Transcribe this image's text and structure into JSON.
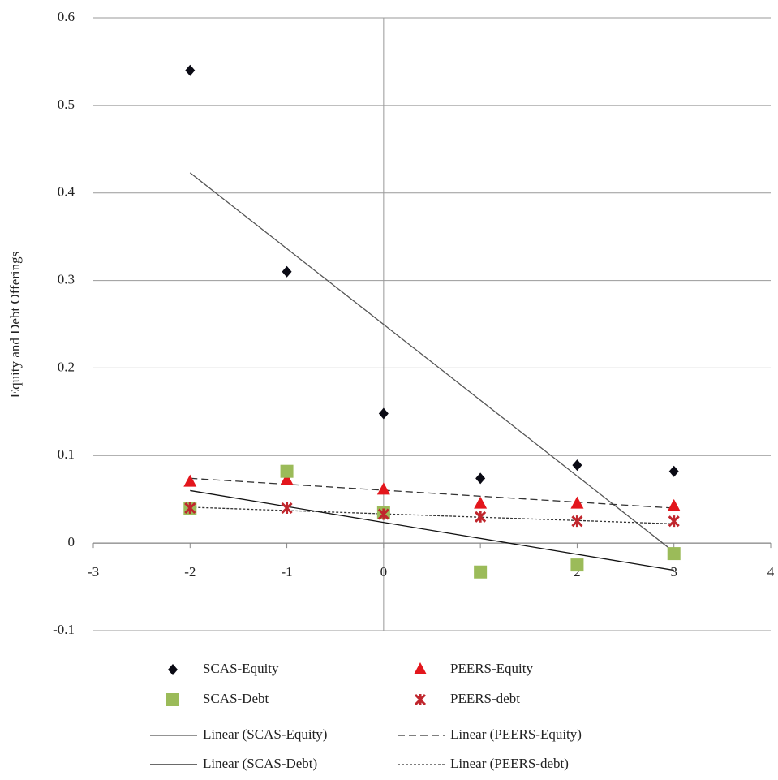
{
  "chart_data": {
    "type": "scatter",
    "y_label": "Equity and Debt Offerings",
    "x": [
      -2,
      -1,
      0,
      1,
      2,
      3
    ],
    "xlim": [
      -3,
      4
    ],
    "xticks": [
      -3,
      -2,
      -1,
      0,
      1,
      2,
      3,
      4
    ],
    "ylim": [
      -0.1,
      0.6
    ],
    "yticks": [
      -0.1,
      0,
      0.1,
      0.2,
      0.3,
      0.4,
      0.5,
      0.6
    ],
    "grid": true,
    "series": [
      {
        "name": "SCAS-Equity",
        "color": "#0a0a14",
        "marker": "diamond",
        "values": [
          0.54,
          0.31,
          0.148,
          0.074,
          0.089,
          0.082
        ]
      },
      {
        "name": "PEERS-Equity",
        "color": "#e3161c",
        "marker": "triangle",
        "values": [
          0.07,
          0.072,
          0.061,
          0.045,
          0.045,
          0.042
        ]
      },
      {
        "name": "SCAS-Debt",
        "color": "#9bbb59",
        "marker": "square",
        "values": [
          0.04,
          0.082,
          0.035,
          -0.033,
          -0.025,
          -0.012
        ]
      },
      {
        "name": "PEERS-debt",
        "color": "#c0262d",
        "marker": "star",
        "values": [
          0.04,
          0.04,
          0.033,
          0.03,
          0.025,
          0.025
        ]
      }
    ],
    "trendlines": [
      {
        "name": "Linear (SCAS-Equity)",
        "color": "#555555",
        "line_style": "solid",
        "x": [
          -2,
          3
        ],
        "values": [
          0.423,
          -0.01
        ]
      },
      {
        "name": "Linear (PEERS-Equity)",
        "color": "#333333",
        "line_style": "dashed",
        "x": [
          -2,
          3
        ],
        "values": [
          0.074,
          0.04
        ]
      },
      {
        "name": "Linear (SCAS-Debt)",
        "color": "#111111",
        "line_style": "solid",
        "x": [
          -2,
          3
        ],
        "values": [
          0.06,
          -0.031
        ]
      },
      {
        "name": "Linear (PEERS-debt)",
        "color": "#333333",
        "line_style": "dotted",
        "x": [
          -2,
          3
        ],
        "values": [
          0.041,
          0.022
        ]
      }
    ]
  }
}
